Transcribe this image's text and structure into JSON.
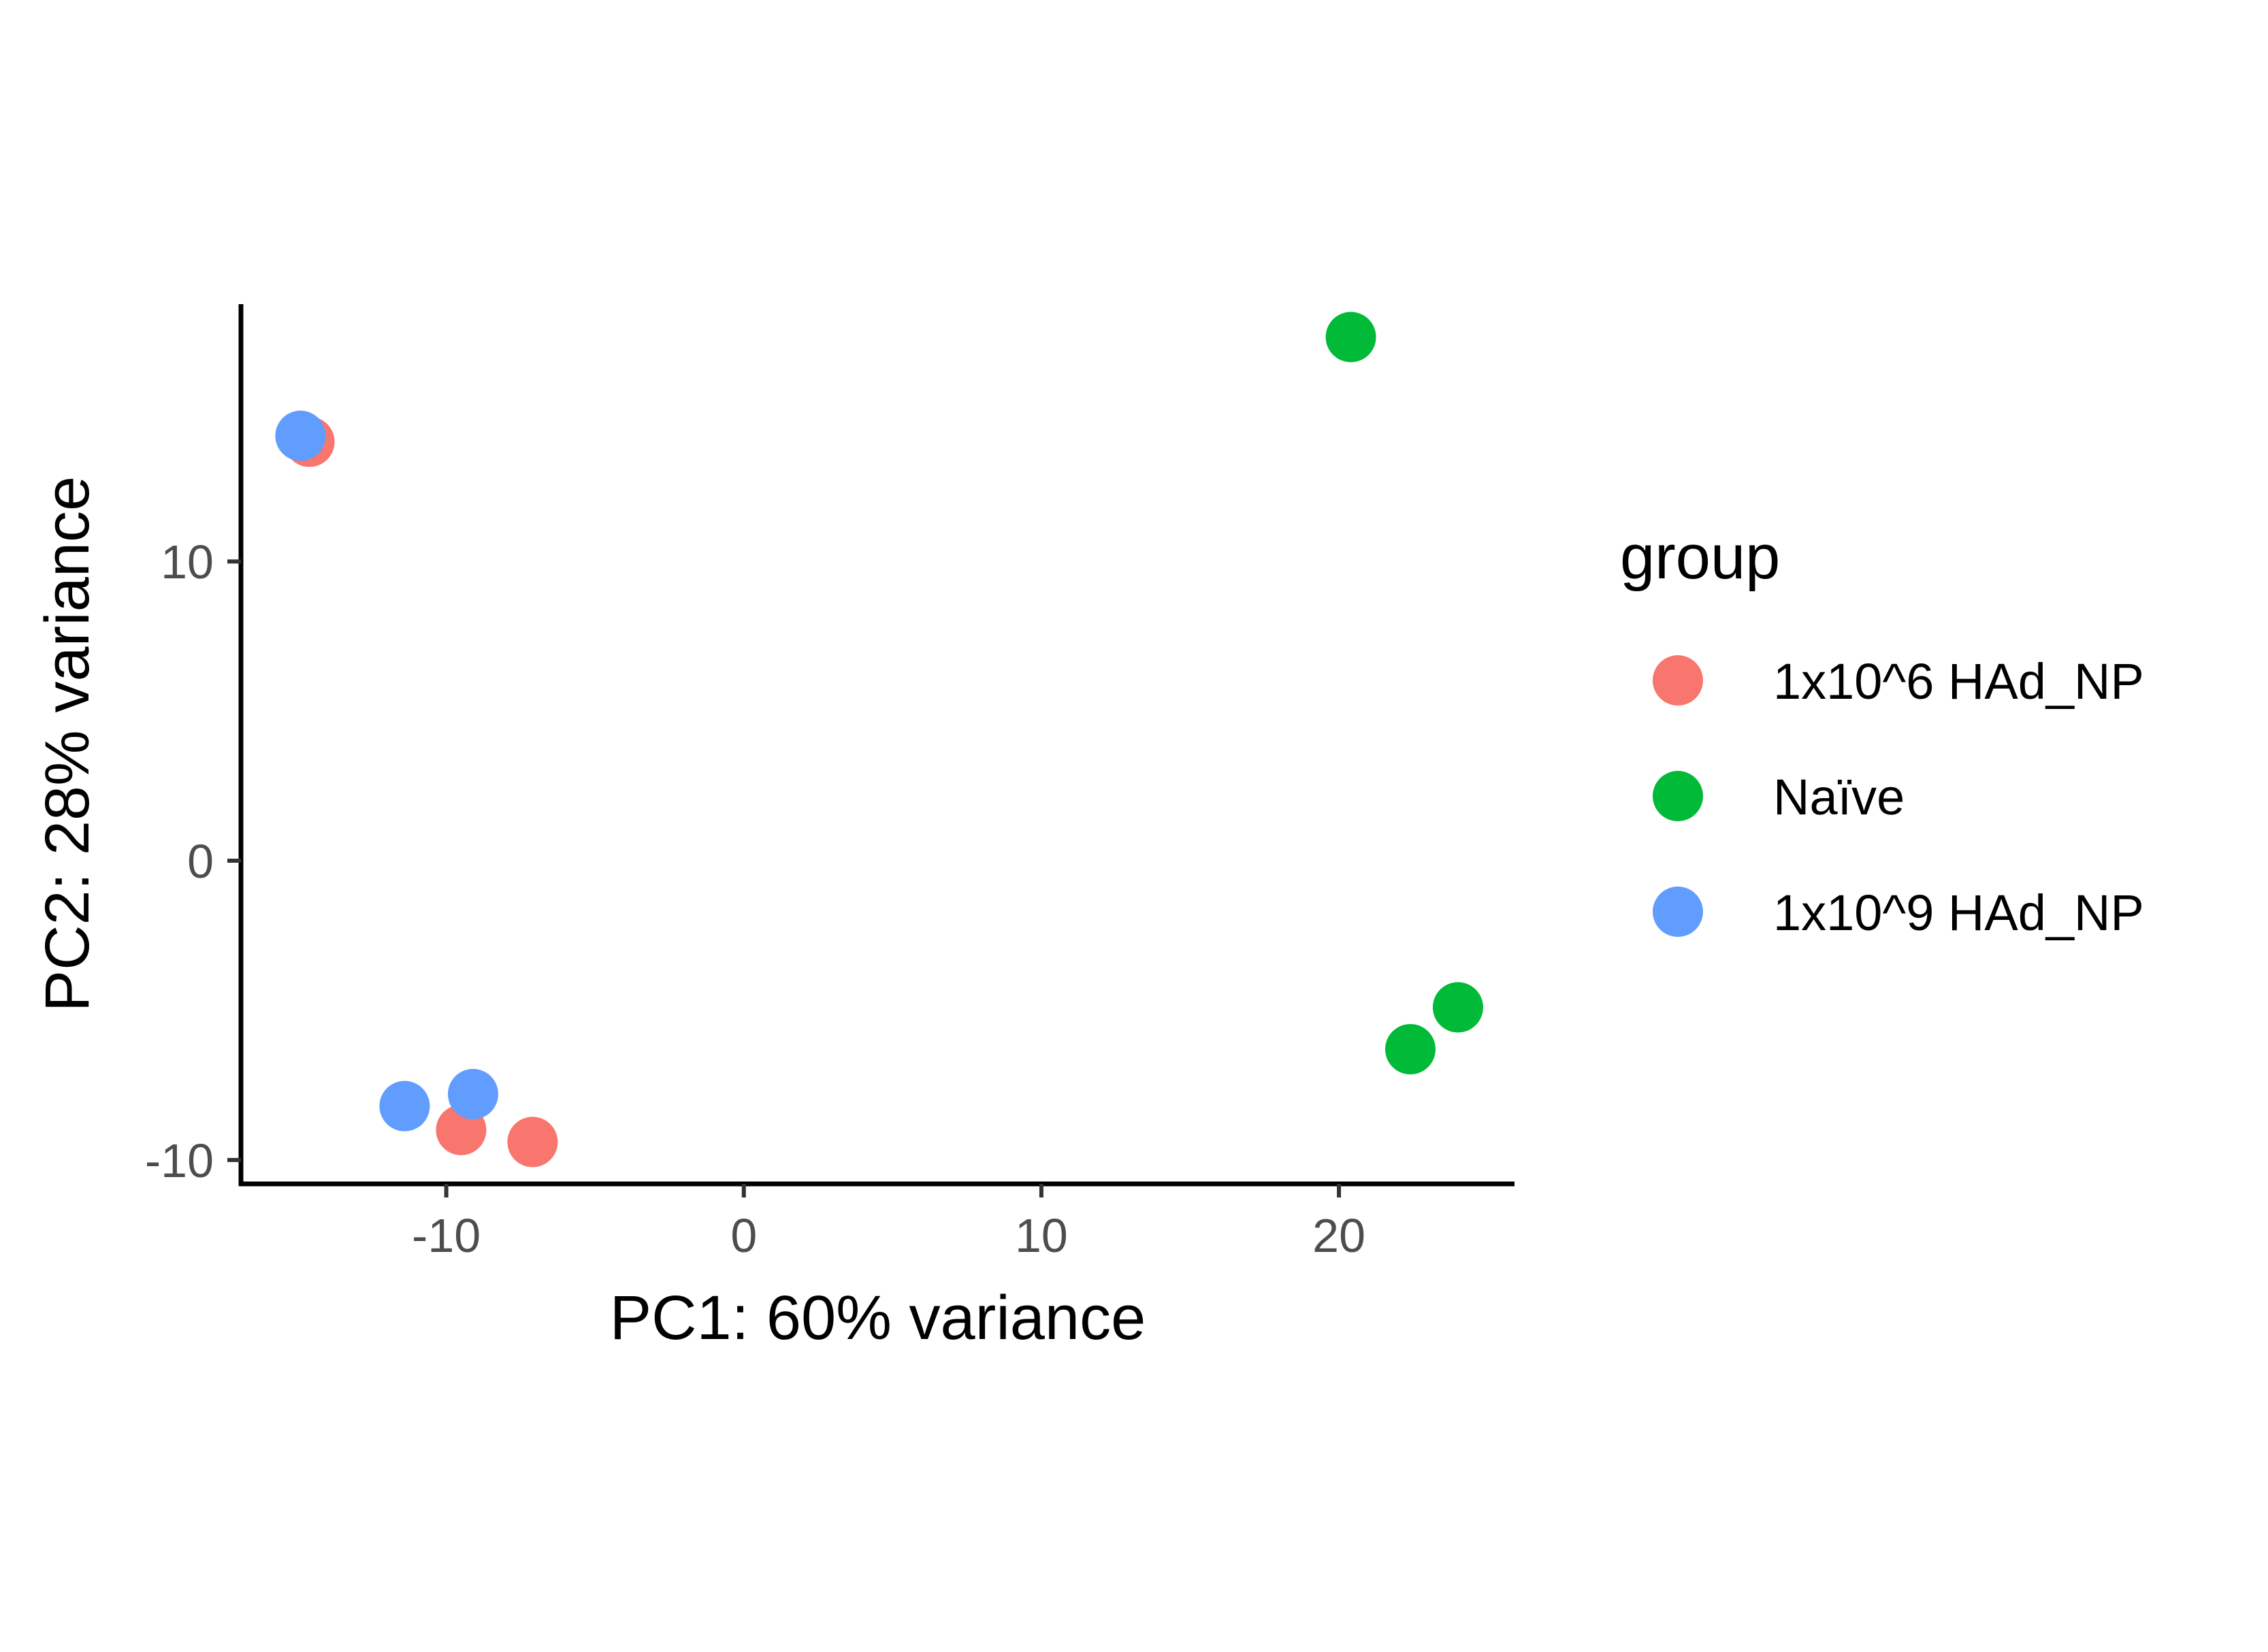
{
  "chart_data": {
    "type": "scatter",
    "title": "",
    "xlabel": "PC1: 60% variance",
    "ylabel": "PC2: 28% variance",
    "xlim": [
      -16.9,
      25.9
    ],
    "ylim": [
      -10.8,
      18.6
    ],
    "xticks": [
      -10,
      0,
      10,
      20
    ],
    "yticks": [
      -10,
      0,
      10
    ],
    "xtick_labels": [
      "-10",
      "0",
      "10",
      "20"
    ],
    "ytick_labels": [
      "-10",
      "0",
      "10"
    ],
    "grid": false,
    "legend": {
      "title": "group",
      "position": "right"
    },
    "series": [
      {
        "name": "1x10^6 HAd_NP",
        "color": "#F8766D",
        "points": [
          {
            "x": -14.6,
            "y": 14.0
          },
          {
            "x": -9.5,
            "y": -9.0
          },
          {
            "x": -7.1,
            "y": -9.4
          }
        ]
      },
      {
        "name": "Naïve",
        "color": "#00BA38",
        "points": [
          {
            "x": 20.4,
            "y": 17.5
          },
          {
            "x": 22.4,
            "y": -6.3
          },
          {
            "x": 24.0,
            "y": -4.9
          }
        ]
      },
      {
        "name": "1x10^9 HAd_NP",
        "color": "#619CFF",
        "points": [
          {
            "x": -14.9,
            "y": 14.2
          },
          {
            "x": -11.4,
            "y": -8.2
          },
          {
            "x": -9.1,
            "y": -7.8
          }
        ]
      }
    ]
  }
}
